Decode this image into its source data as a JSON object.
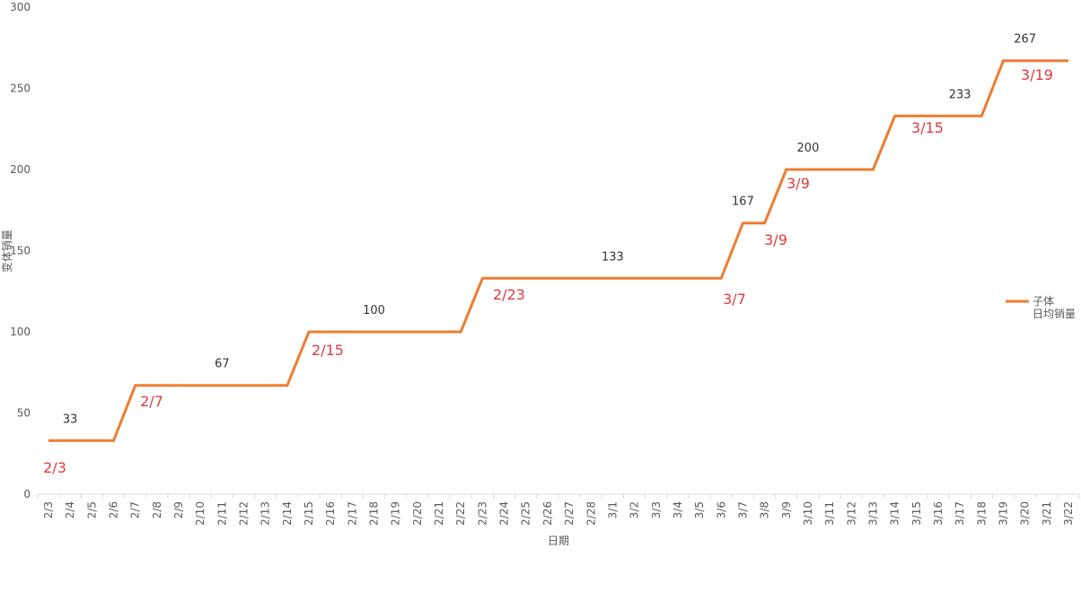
{
  "chart_data": {
    "type": "line",
    "y_label": "变体销量",
    "x_label": "日期",
    "categories": [
      "2/3",
      "2/4",
      "2/5",
      "2/6",
      "2/7",
      "2/8",
      "2/9",
      "2/10",
      "2/11",
      "2/12",
      "2/13",
      "2/14",
      "2/15",
      "2/16",
      "2/17",
      "2/18",
      "2/19",
      "2/20",
      "2/21",
      "2/22",
      "2/23",
      "2/24",
      "2/25",
      "2/26",
      "2/27",
      "2/28",
      "3/1",
      "3/2",
      "3/3",
      "3/4",
      "3/5",
      "3/6",
      "3/7",
      "3/8",
      "3/9",
      "3/10",
      "3/11",
      "3/12",
      "3/13",
      "3/14",
      "3/15",
      "3/16",
      "3/17",
      "3/18",
      "3/19",
      "3/20",
      "3/21",
      "3/22"
    ],
    "series": [
      {
        "name": "子体 日均销量",
        "color": "#ed7d31",
        "values": [
          33,
          33,
          33,
          33,
          67,
          67,
          67,
          67,
          67,
          67,
          67,
          67,
          100,
          100,
          100,
          100,
          100,
          100,
          100,
          100,
          133,
          133,
          133,
          133,
          133,
          133,
          133,
          133,
          133,
          133,
          133,
          133,
          167,
          167,
          200,
          200,
          200,
          200,
          200,
          233,
          233,
          233,
          233,
          233,
          267,
          267,
          267,
          267
        ]
      }
    ],
    "ylim": [
      0,
      300
    ],
    "yticks": [
      0,
      50,
      100,
      150,
      200,
      250,
      300
    ],
    "annotations": [
      "2/3",
      "2/7",
      "2/15",
      "2/23",
      "3/7",
      "3/9",
      "3/9",
      "3/15",
      "3/19"
    ],
    "legend": "right"
  }
}
